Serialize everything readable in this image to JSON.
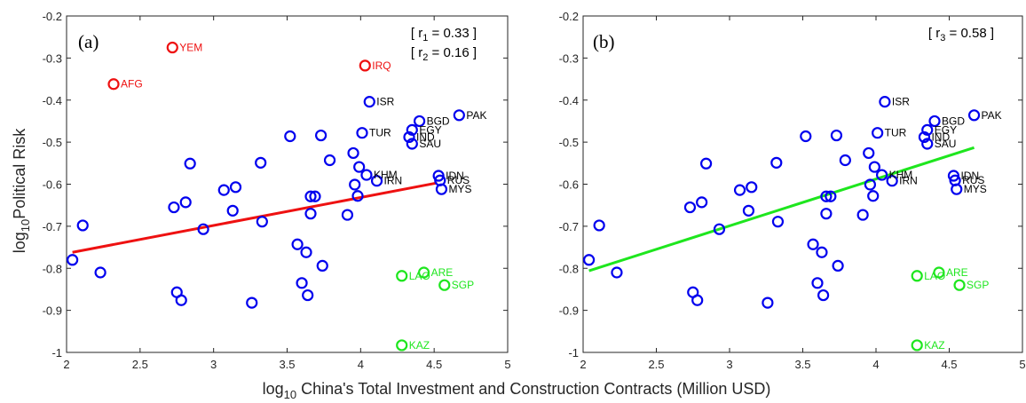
{
  "xlabel_prefix": "log",
  "xlabel_sub": "10",
  "xlabel_rest": " China's Total Investment and Construction Contracts (Million USD)",
  "ylabel_prefix": "log",
  "ylabel_sub": "10",
  "ylabel_rest": "Political Risk",
  "colors": {
    "blue": "#0000ee",
    "red": "#ee1111",
    "green": "#1ee61e",
    "axis": "#262626"
  },
  "chart_data": [
    {
      "type": "scatter",
      "panel_label": "(a)",
      "annotations": [
        {
          "prefix": "[ r",
          "sub": "1",
          "suffix": " = 0.33 ]"
        },
        {
          "prefix": "[ r",
          "sub": "2",
          "suffix": " = 0.16 ]"
        }
      ],
      "xlim": [
        2,
        5
      ],
      "ylim": [
        -1,
        -0.2
      ],
      "xticks": [
        "2",
        "2.5",
        "3",
        "3.5",
        "4",
        "4.5",
        "5"
      ],
      "yticks": [
        "-1",
        "-0.9",
        "-0.8",
        "-0.7",
        "-0.6",
        "-0.5",
        "-0.4",
        "-0.3",
        "-0.2"
      ],
      "fit_line": {
        "color": "red",
        "x": [
          2.04,
          4.52
        ],
        "y": [
          -0.762,
          -0.597
        ]
      },
      "red_points": [
        [
          2.32,
          -0.362
        ],
        [
          2.72,
          -0.275
        ],
        [
          4.03,
          -0.318
        ]
      ],
      "green_points": [
        [
          4.28,
          -0.818
        ],
        [
          4.43,
          -0.81
        ],
        [
          4.57,
          -0.84
        ],
        [
          4.28,
          -0.983
        ]
      ]
    },
    {
      "type": "scatter",
      "panel_label": "(b)",
      "annotations": [
        {
          "prefix": "[ r",
          "sub": "3",
          "suffix": " = 0.58 ]"
        }
      ],
      "xlim": [
        2,
        5
      ],
      "ylim": [
        -1,
        -0.2
      ],
      "xticks": [
        "2",
        "2.5",
        "3",
        "3.5",
        "4",
        "4.5",
        "5"
      ],
      "yticks": [
        "-1",
        "-0.9",
        "-0.8",
        "-0.7",
        "-0.6",
        "-0.5",
        "-0.4",
        "-0.3",
        "-0.2"
      ],
      "fit_line": {
        "color": "green",
        "x": [
          2.04,
          4.67
        ],
        "y": [
          -0.806,
          -0.513
        ]
      },
      "red_points": [],
      "green_points": [
        [
          4.28,
          -0.818
        ],
        [
          4.43,
          -0.81
        ],
        [
          4.57,
          -0.84
        ],
        [
          4.28,
          -0.983
        ]
      ]
    }
  ],
  "blue_points": [
    [
      2.04,
      -0.78
    ],
    [
      2.11,
      -0.698
    ],
    [
      2.23,
      -0.81
    ],
    [
      2.73,
      -0.655
    ],
    [
      2.75,
      -0.857
    ],
    [
      2.78,
      -0.876
    ],
    [
      2.81,
      -0.643
    ],
    [
      2.84,
      -0.551
    ],
    [
      2.93,
      -0.707
    ],
    [
      3.07,
      -0.614
    ],
    [
      3.13,
      -0.663
    ],
    [
      3.15,
      -0.607
    ],
    [
      3.26,
      -0.882
    ],
    [
      3.32,
      -0.549
    ],
    [
      3.33,
      -0.689
    ],
    [
      3.52,
      -0.486
    ],
    [
      3.57,
      -0.743
    ],
    [
      3.6,
      -0.835
    ],
    [
      3.63,
      -0.762
    ],
    [
      3.64,
      -0.864
    ],
    [
      3.66,
      -0.629
    ],
    [
      3.66,
      -0.67
    ],
    [
      3.69,
      -0.629
    ],
    [
      3.73,
      -0.484
    ],
    [
      3.74,
      -0.794
    ],
    [
      3.79,
      -0.543
    ],
    [
      3.91,
      -0.673
    ],
    [
      3.95,
      -0.526
    ],
    [
      3.96,
      -0.601
    ],
    [
      3.98,
      -0.628
    ],
    [
      3.99,
      -0.559
    ],
    [
      4.01,
      -0.478
    ],
    [
      4.04,
      -0.578
    ],
    [
      4.06,
      -0.404
    ],
    [
      4.11,
      -0.592
    ],
    [
      4.33,
      -0.488
    ],
    [
      4.35,
      -0.471
    ],
    [
      4.35,
      -0.504
    ],
    [
      4.4,
      -0.45
    ],
    [
      4.53,
      -0.58
    ],
    [
      4.54,
      -0.591
    ],
    [
      4.55,
      -0.612
    ],
    [
      4.67,
      -0.436
    ]
  ],
  "point_labels": {
    "panel_a": [
      {
        "text": "YEM",
        "x": 2.72,
        "y": -0.275,
        "color": "red"
      },
      {
        "text": "AFG",
        "x": 2.32,
        "y": -0.362,
        "color": "red"
      },
      {
        "text": "IRQ",
        "x": 4.03,
        "y": -0.318,
        "color": "red"
      },
      {
        "text": "ISR",
        "x": 4.06,
        "y": -0.404,
        "color": "black"
      },
      {
        "text": "PAK",
        "x": 4.67,
        "y": -0.436,
        "color": "black"
      },
      {
        "text": "BGD",
        "x": 4.4,
        "y": -0.45,
        "color": "black"
      },
      {
        "text": "TUR",
        "x": 4.01,
        "y": -0.478,
        "color": "black"
      },
      {
        "text": "EGY",
        "x": 4.35,
        "y": -0.471,
        "color": "black"
      },
      {
        "text": "IND",
        "x": 4.33,
        "y": -0.488,
        "color": "black"
      },
      {
        "text": "SAU",
        "x": 4.35,
        "y": -0.504,
        "color": "black"
      },
      {
        "text": "KHM",
        "x": 4.04,
        "y": -0.578,
        "color": "black"
      },
      {
        "text": "IRN",
        "x": 4.11,
        "y": -0.592,
        "color": "black"
      },
      {
        "text": "IDN",
        "x": 4.53,
        "y": -0.58,
        "color": "black"
      },
      {
        "text": "RUS",
        "x": 4.54,
        "y": -0.591,
        "color": "black"
      },
      {
        "text": "MYS",
        "x": 4.55,
        "y": -0.612,
        "color": "black"
      },
      {
        "text": "LAO",
        "x": 4.28,
        "y": -0.818,
        "color": "green"
      },
      {
        "text": "ARE",
        "x": 4.43,
        "y": -0.81,
        "color": "green"
      },
      {
        "text": "SGP",
        "x": 4.57,
        "y": -0.84,
        "color": "green"
      },
      {
        "text": "KAZ",
        "x": 4.28,
        "y": -0.983,
        "color": "green"
      }
    ],
    "panel_b": [
      {
        "text": "ISR",
        "x": 4.06,
        "y": -0.404,
        "color": "black"
      },
      {
        "text": "PAK",
        "x": 4.67,
        "y": -0.436,
        "color": "black"
      },
      {
        "text": "BGD",
        "x": 4.4,
        "y": -0.45,
        "color": "black"
      },
      {
        "text": "TUR",
        "x": 4.01,
        "y": -0.478,
        "color": "black"
      },
      {
        "text": "EGY",
        "x": 4.35,
        "y": -0.471,
        "color": "black"
      },
      {
        "text": "IND",
        "x": 4.33,
        "y": -0.488,
        "color": "black"
      },
      {
        "text": "SAU",
        "x": 4.35,
        "y": -0.504,
        "color": "black"
      },
      {
        "text": "KHM",
        "x": 4.04,
        "y": -0.578,
        "color": "black"
      },
      {
        "text": "IRN",
        "x": 4.11,
        "y": -0.592,
        "color": "black"
      },
      {
        "text": "IDN",
        "x": 4.53,
        "y": -0.58,
        "color": "black"
      },
      {
        "text": "RUS",
        "x": 4.54,
        "y": -0.591,
        "color": "black"
      },
      {
        "text": "MYS",
        "x": 4.55,
        "y": -0.612,
        "color": "black"
      },
      {
        "text": "LAO",
        "x": 4.28,
        "y": -0.818,
        "color": "green"
      },
      {
        "text": "ARE",
        "x": 4.43,
        "y": -0.81,
        "color": "green"
      },
      {
        "text": "SGP",
        "x": 4.57,
        "y": -0.84,
        "color": "green"
      },
      {
        "text": "KAZ",
        "x": 4.28,
        "y": -0.983,
        "color": "green"
      }
    ]
  }
}
